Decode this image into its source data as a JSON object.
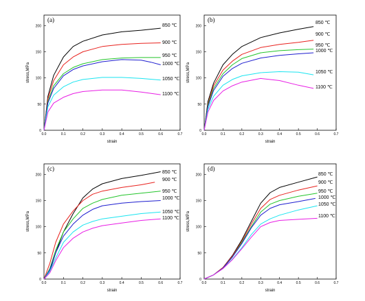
{
  "figure": {
    "panels_count": 4
  },
  "chart_data": [
    {
      "type": "line",
      "panel_label": "(a)",
      "xlabel": "strain",
      "ylabel": "stress,MPa",
      "xlim": [
        0,
        0.7
      ],
      "ylim": [
        0,
        220
      ],
      "xticks": [
        "0.0",
        "0.1",
        "0.2",
        "0.3",
        "0.4",
        "0.5",
        "0.6",
        "0.7"
      ],
      "yticks": [
        "0",
        "50",
        "100",
        "150",
        "200"
      ],
      "series": [
        {
          "name": "850 ℃",
          "color": "#000000",
          "x": [
            0,
            0.02,
            0.05,
            0.1,
            0.15,
            0.2,
            0.3,
            0.4,
            0.5,
            0.6
          ],
          "y": [
            0,
            65,
            105,
            140,
            160,
            170,
            182,
            188,
            191,
            195
          ]
        },
        {
          "name": "900 ℃",
          "color": "#e8201c",
          "x": [
            0,
            0.02,
            0.05,
            0.1,
            0.15,
            0.2,
            0.3,
            0.4,
            0.5,
            0.6
          ],
          "y": [
            0,
            60,
            95,
            125,
            140,
            150,
            160,
            164,
            166,
            167
          ]
        },
        {
          "name": "950 ℃",
          "color": "#22c42a",
          "x": [
            0,
            0.02,
            0.05,
            0.1,
            0.15,
            0.2,
            0.3,
            0.4,
            0.5,
            0.6
          ],
          "y": [
            0,
            55,
            85,
            108,
            120,
            127,
            135,
            138,
            139,
            139
          ]
        },
        {
          "name": "1000 ℃",
          "color": "#1c1ccf",
          "x": [
            0,
            0.02,
            0.05,
            0.1,
            0.15,
            0.2,
            0.3,
            0.4,
            0.5,
            0.55,
            0.6
          ],
          "y": [
            0,
            52,
            80,
            104,
            116,
            123,
            131,
            135,
            134,
            130,
            125
          ]
        },
        {
          "name": "1050 ℃",
          "color": "#18e4f0",
          "x": [
            0,
            0.02,
            0.05,
            0.1,
            0.15,
            0.2,
            0.3,
            0.4,
            0.5,
            0.6
          ],
          "y": [
            0,
            45,
            67,
            83,
            92,
            97,
            101,
            101,
            99,
            96
          ]
        },
        {
          "name": "1100 ℃",
          "color": "#e81ce4",
          "x": [
            0,
            0.02,
            0.05,
            0.1,
            0.15,
            0.2,
            0.3,
            0.4,
            0.5,
            0.6
          ],
          "y": [
            0,
            35,
            52,
            63,
            70,
            74,
            77,
            77,
            73,
            68
          ]
        }
      ]
    },
    {
      "type": "line",
      "panel_label": "(b)",
      "xlabel": "strain",
      "ylabel": "stress,MPa",
      "xlim": [
        0,
        0.7
      ],
      "ylim": [
        0,
        220
      ],
      "xticks": [
        "0.0",
        "0.1",
        "0.2",
        "0.3",
        "0.4",
        "0.5",
        "0.6",
        "0.7"
      ],
      "yticks": [
        "0",
        "50",
        "100",
        "150",
        "200"
      ],
      "series": [
        {
          "name": "850 ℃",
          "color": "#000000",
          "x": [
            0,
            0.02,
            0.05,
            0.1,
            0.15,
            0.2,
            0.3,
            0.4,
            0.5,
            0.58
          ],
          "y": [
            0,
            55,
            90,
            125,
            145,
            160,
            177,
            186,
            193,
            198
          ]
        },
        {
          "name": "900 ℃",
          "color": "#e8201c",
          "x": [
            0,
            0.02,
            0.05,
            0.1,
            0.15,
            0.2,
            0.3,
            0.4,
            0.5,
            0.58
          ],
          "y": [
            0,
            50,
            85,
            115,
            132,
            145,
            158,
            164,
            168,
            172
          ]
        },
        {
          "name": "950 ℃",
          "color": "#22c42a",
          "x": [
            0,
            0.02,
            0.05,
            0.1,
            0.15,
            0.2,
            0.3,
            0.4,
            0.5,
            0.58
          ],
          "y": [
            0,
            48,
            80,
            108,
            125,
            137,
            148,
            152,
            154,
            155
          ]
        },
        {
          "name": "1000 ℃",
          "color": "#1c1ccf",
          "x": [
            0,
            0.02,
            0.05,
            0.1,
            0.15,
            0.2,
            0.3,
            0.4,
            0.5,
            0.58
          ],
          "y": [
            0,
            45,
            76,
            103,
            118,
            128,
            138,
            143,
            146,
            148
          ]
        },
        {
          "name": "1050 ℃",
          "color": "#18e4f0",
          "x": [
            0,
            0.02,
            0.05,
            0.1,
            0.15,
            0.2,
            0.3,
            0.4,
            0.5,
            0.58
          ],
          "y": [
            0,
            40,
            65,
            86,
            97,
            104,
            110,
            112,
            111,
            106
          ]
        },
        {
          "name": "1100 ℃",
          "color": "#e81ce4",
          "x": [
            0,
            0.02,
            0.05,
            0.1,
            0.15,
            0.2,
            0.3,
            0.4,
            0.5,
            0.58
          ],
          "y": [
            0,
            35,
            57,
            75,
            85,
            92,
            99,
            95,
            86,
            80
          ]
        }
      ]
    },
    {
      "type": "line",
      "panel_label": "(c)",
      "xlabel": "strain",
      "ylabel": "stress,MPa",
      "xlim": [
        0,
        0.7
      ],
      "ylim": [
        0,
        220
      ],
      "xticks": [
        "0.0",
        "0.1",
        "0.2",
        "0.3",
        "0.4",
        "0.5",
        "0.6",
        "0.7"
      ],
      "yticks": [
        "0",
        "50",
        "100",
        "150",
        "200"
      ],
      "series": [
        {
          "name": "850 ℃",
          "color": "#000000",
          "x": [
            0,
            0.03,
            0.06,
            0.1,
            0.15,
            0.2,
            0.25,
            0.3,
            0.4,
            0.5,
            0.6
          ],
          "y": [
            0,
            15,
            50,
            90,
            125,
            155,
            172,
            182,
            192,
            198,
            205
          ]
        },
        {
          "name": "900 ℃",
          "color": "#e8201c",
          "x": [
            0,
            0.03,
            0.06,
            0.1,
            0.15,
            0.2,
            0.25,
            0.3,
            0.4,
            0.5,
            0.57
          ],
          "y": [
            0,
            30,
            70,
            105,
            130,
            150,
            162,
            168,
            175,
            180,
            185
          ]
        },
        {
          "name": "950 ℃",
          "color": "#22c42a",
          "x": [
            0,
            0.03,
            0.06,
            0.1,
            0.15,
            0.2,
            0.25,
            0.3,
            0.4,
            0.5,
            0.6
          ],
          "y": [
            0,
            20,
            55,
            90,
            115,
            135,
            145,
            152,
            160,
            164,
            168
          ]
        },
        {
          "name": "1000 ℃",
          "color": "#1c1ccf",
          "x": [
            0,
            0.03,
            0.06,
            0.1,
            0.15,
            0.2,
            0.25,
            0.3,
            0.4,
            0.5,
            0.6
          ],
          "y": [
            0,
            18,
            50,
            82,
            105,
            122,
            133,
            140,
            145,
            148,
            150
          ]
        },
        {
          "name": "1050 ℃",
          "color": "#18e4f0",
          "x": [
            0,
            0.03,
            0.06,
            0.1,
            0.15,
            0.2,
            0.25,
            0.3,
            0.4,
            0.5,
            0.6
          ],
          "y": [
            0,
            15,
            40,
            70,
            90,
            103,
            110,
            115,
            120,
            125,
            128
          ]
        },
        {
          "name": "1100 ℃",
          "color": "#e81ce4",
          "x": [
            0,
            0.03,
            0.06,
            0.1,
            0.15,
            0.2,
            0.25,
            0.3,
            0.4,
            0.5,
            0.6
          ],
          "y": [
            0,
            12,
            35,
            60,
            78,
            90,
            97,
            102,
            107,
            112,
            115
          ]
        }
      ]
    },
    {
      "type": "line",
      "panel_label": "(d)",
      "xlabel": "strain",
      "ylabel": "stress,MPa",
      "xlim": [
        0,
        0.7
      ],
      "ylim": [
        0,
        220
      ],
      "xticks": [
        "0.0",
        "0.1",
        "0.2",
        "0.3",
        "0.4",
        "0.5",
        "0.6",
        "0.7"
      ],
      "yticks": [
        "0",
        "50",
        "100",
        "150",
        "200"
      ],
      "series": [
        {
          "name": "850 ℃",
          "color": "#000000",
          "x": [
            0,
            0.05,
            0.1,
            0.15,
            0.2,
            0.25,
            0.3,
            0.35,
            0.4,
            0.5,
            0.6
          ],
          "y": [
            0,
            8,
            22,
            45,
            75,
            110,
            145,
            165,
            175,
            185,
            195
          ]
        },
        {
          "name": "900 ℃",
          "color": "#e8201c",
          "x": [
            0,
            0.05,
            0.1,
            0.15,
            0.2,
            0.25,
            0.3,
            0.35,
            0.4,
            0.5,
            0.6
          ],
          "y": [
            0,
            8,
            22,
            44,
            72,
            105,
            135,
            152,
            160,
            170,
            178
          ]
        },
        {
          "name": "950 ℃",
          "color": "#22c42a",
          "x": [
            0,
            0.05,
            0.1,
            0.15,
            0.2,
            0.25,
            0.3,
            0.35,
            0.4,
            0.5,
            0.6
          ],
          "y": [
            0,
            8,
            21,
            42,
            70,
            100,
            128,
            143,
            150,
            158,
            164
          ]
        },
        {
          "name": "1000 ℃",
          "color": "#1c1ccf",
          "x": [
            0,
            0.05,
            0.1,
            0.15,
            0.2,
            0.25,
            0.3,
            0.35,
            0.4,
            0.5,
            0.59
          ],
          "y": [
            0,
            8,
            21,
            42,
            68,
            98,
            122,
            135,
            142,
            148,
            154
          ]
        },
        {
          "name": "1050 ℃",
          "color": "#18e4f0",
          "x": [
            0,
            0.05,
            0.1,
            0.15,
            0.2,
            0.25,
            0.3,
            0.35,
            0.4,
            0.5,
            0.6
          ],
          "y": [
            0,
            8,
            20,
            38,
            60,
            85,
            105,
            115,
            122,
            132,
            140
          ]
        },
        {
          "name": "1100 ℃",
          "color": "#e81ce4",
          "x": [
            0,
            0.05,
            0.1,
            0.15,
            0.2,
            0.25,
            0.3,
            0.35,
            0.4,
            0.5,
            0.6
          ],
          "y": [
            0,
            8,
            20,
            37,
            58,
            80,
            100,
            108,
            112,
            114,
            116
          ]
        }
      ]
    }
  ]
}
